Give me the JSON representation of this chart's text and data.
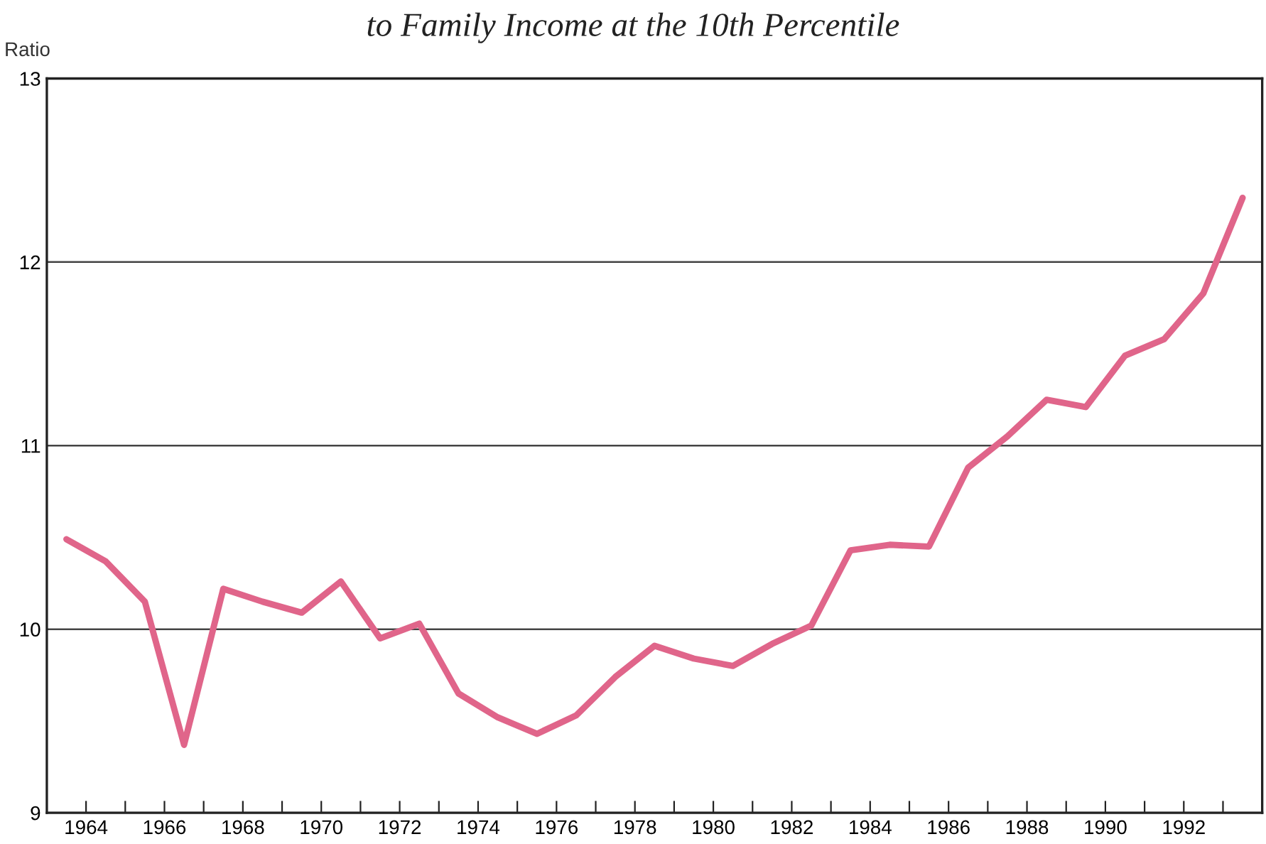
{
  "chart_data": {
    "type": "line",
    "title": "to Family Income at the 10th Percentile",
    "ylabel": "Ratio",
    "x": [
      1963.5,
      1964.5,
      1965.5,
      1966.5,
      1967.5,
      1968.5,
      1969.5,
      1970.5,
      1971.5,
      1972.5,
      1973.5,
      1974.5,
      1975.5,
      1976.5,
      1977.5,
      1978.5,
      1979.5,
      1980.5,
      1981.5,
      1982.5,
      1983.5,
      1984.5,
      1985.5,
      1986.5,
      1987.5,
      1988.5,
      1989.5,
      1990.5,
      1991.5,
      1992.5,
      1993.5
    ],
    "series": [
      {
        "color": "#e0658a",
        "values": [
          10.49,
          10.37,
          10.15,
          9.37,
          10.22,
          10.15,
          10.09,
          10.26,
          9.95,
          10.03,
          9.65,
          9.52,
          9.43,
          9.53,
          9.74,
          9.91,
          9.84,
          9.8,
          9.92,
          10.02,
          10.43,
          10.46,
          10.45,
          10.88,
          11.05,
          11.25,
          11.21,
          11.49,
          11.58,
          11.83,
          12.35
        ]
      }
    ],
    "xlim": [
      1963,
      1994
    ],
    "ylim": [
      9,
      13
    ],
    "xticks": [
      1964,
      {
        "value": 1965,
        "label": null
      },
      1966,
      {
        "value": 1967,
        "label": null
      },
      1968,
      {
        "value": 1969,
        "label": null
      },
      1970,
      {
        "value": 1971,
        "label": null
      },
      1972,
      {
        "value": 1973,
        "label": null
      },
      1974,
      {
        "value": 1975,
        "label": null
      },
      1976,
      {
        "value": 1977,
        "label": null
      },
      1978,
      {
        "value": 1979,
        "label": null
      },
      1980,
      {
        "value": 1981,
        "label": null
      },
      1982,
      {
        "value": 1983,
        "label": null
      },
      1984,
      {
        "value": 1985,
        "label": null
      },
      1986,
      {
        "value": 1987,
        "label": null
      },
      1988,
      {
        "value": 1989,
        "label": null
      },
      1990,
      {
        "value": 1991,
        "label": null
      },
      1992,
      {
        "value": 1993,
        "label": null
      }
    ],
    "yticks": [
      9,
      10,
      11,
      12,
      13
    ],
    "grid": "y",
    "legend": false,
    "marker": "none",
    "line_style": "solid"
  }
}
